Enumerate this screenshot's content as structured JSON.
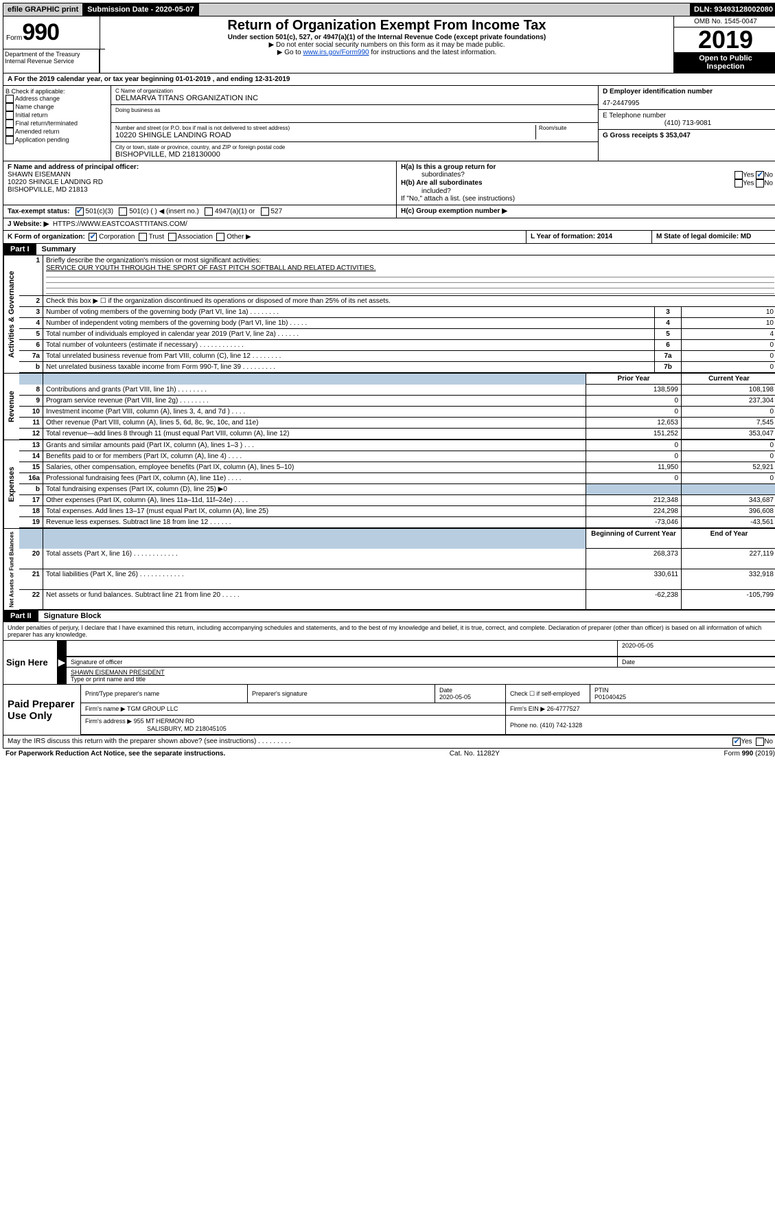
{
  "topbar": {
    "efile": "efile GRAPHIC print",
    "submission_label": "Submission Date - 2020-05-07",
    "dln": "DLN: 93493128002080"
  },
  "header": {
    "form_word": "Form",
    "form_num": "990",
    "title": "Return of Organization Exempt From Income Tax",
    "subtitle": "Under section 501(c), 527, or 4947(a)(1) of the Internal Revenue Code (except private foundations)",
    "note1": "▶ Do not enter social security numbers on this form as it may be made public.",
    "note2_pre": "▶ Go to ",
    "note2_link": "www.irs.gov/Form990",
    "note2_post": " for instructions and the latest information.",
    "dept": "Department of the Treasury\nInternal Revenue Service",
    "omb": "OMB No. 1545-0047",
    "year": "2019",
    "inspect1": "Open to Public",
    "inspect2": "Inspection"
  },
  "lineA": "A For the 2019 calendar year, or tax year beginning 01-01-2019    , and ending 12-31-2019",
  "colB": {
    "label": "B Check if applicable:",
    "items": [
      "Address change",
      "Name change",
      "Initial return",
      "Final return/terminated",
      "Amended return",
      "Application pending"
    ]
  },
  "colC": {
    "name_lbl": "C Name of organization",
    "name_val": "DELMARVA TITANS ORGANIZATION INC",
    "dba_lbl": "Doing business as",
    "addr_lbl": "Number and street (or P.O. box if mail is not delivered to street address)",
    "room_lbl": "Room/suite",
    "addr_val": "10220 SHINGLE LANDING ROAD",
    "city_lbl": "City or town, state or province, country, and ZIP or foreign postal code",
    "city_val": "BISHOPVILLE, MD  218130000"
  },
  "colDE": {
    "d_lbl": "D Employer identification number",
    "d_val": "47-2447995",
    "e_lbl": "E Telephone number",
    "e_val": "(410) 713-9081",
    "g_lbl": "G Gross receipts $ 353,047"
  },
  "colF": {
    "lbl": "F Name and address of principal officer:",
    "name": "SHAWN EISEMANN",
    "addr1": "10220 SHINGLE LANDING RD",
    "addr2": "BISHOPVILLE, MD  21813"
  },
  "colH": {
    "ha1": "H(a)  Is this a group return for",
    "ha2": "subordinates?",
    "hb1": "H(b)  Are all subordinates",
    "hb2": "included?",
    "hnote": "If \"No,\" attach a list. (see instructions)",
    "hc": "H(c)  Group exemption number ▶"
  },
  "lineI": {
    "lbl": "Tax-exempt status:",
    "opts": [
      "501(c)(3)",
      "501(c) (   ) ◀ (insert no.)",
      "4947(a)(1) or",
      "527"
    ]
  },
  "lineJ": {
    "lbl": "J    Website: ▶",
    "val": "HTTPS://WWW.EASTCOASTTITANS.COM/"
  },
  "lineK": {
    "lbl": "K Form of organization:",
    "opts": [
      "Corporation",
      "Trust",
      "Association",
      "Other ▶"
    ],
    "l_lbl": "L Year of formation: 2014",
    "m_lbl": "M State of legal domicile: MD"
  },
  "part1": {
    "label": "Part I",
    "title": "Summary"
  },
  "summary": {
    "q1_lbl": "Briefly describe the organization's mission or most significant activities:",
    "q1_val": "SERVICE OUR YOUTH THROUGH THE SPORT OF FAST PITCH SOFTBALL AND RELATED ACTIVITIES.",
    "q2": "Check this box ▶ ☐  if the organization discontinued its operations or disposed of more than 25% of its net assets.",
    "gov_rows": [
      {
        "n": "3",
        "d": "Number of voting members of the governing body (Part VI, line 1a)   .    .    .    .    .    .    .    .",
        "b": "3",
        "v": "10"
      },
      {
        "n": "4",
        "d": "Number of independent voting members of the governing body (Part VI, line 1b)   .    .    .    .    .",
        "b": "4",
        "v": "10"
      },
      {
        "n": "5",
        "d": "Total number of individuals employed in calendar year 2019 (Part V, line 2a)  .    .    .    .    .    .",
        "b": "5",
        "v": "4"
      },
      {
        "n": "6",
        "d": "Total number of volunteers (estimate if necessary)  .    .    .    .    .    .    .    .    .    .    .    .",
        "b": "6",
        "v": "0"
      },
      {
        "n": "7a",
        "d": "Total unrelated business revenue from Part VIII, column (C), line 12  .    .    .    .    .    .    .    .",
        "b": "7a",
        "v": "0"
      },
      {
        "n": "b",
        "d": "Net unrelated business taxable income from Form 990-T, line 39  .    .    .    .    .    .    .    .    .",
        "b": "7b",
        "v": "0"
      }
    ],
    "col_prior": "Prior Year",
    "col_current": "Current Year",
    "rev_rows": [
      {
        "n": "8",
        "d": "Contributions and grants (Part VIII, line 1h)  .    .    .    .    .    .    .    .",
        "p": "138,599",
        "c": "108,198"
      },
      {
        "n": "9",
        "d": "Program service revenue (Part VIII, line 2g)  .    .    .    .    .    .    .    .",
        "p": "0",
        "c": "237,304"
      },
      {
        "n": "10",
        "d": "Investment income (Part VIII, column (A), lines 3, 4, and 7d )  .    .    .    .",
        "p": "0",
        "c": "0"
      },
      {
        "n": "11",
        "d": "Other revenue (Part VIII, column (A), lines 5, 6d, 8c, 9c, 10c, and 11e)",
        "p": "12,653",
        "c": "7,545"
      },
      {
        "n": "12",
        "d": "Total revenue—add lines 8 through 11 (must equal Part VIII, column (A), line 12)",
        "p": "151,252",
        "c": "353,047"
      }
    ],
    "exp_rows": [
      {
        "n": "13",
        "d": "Grants and similar amounts paid (Part IX, column (A), lines 1–3 )  .    .    .",
        "p": "0",
        "c": "0"
      },
      {
        "n": "14",
        "d": "Benefits paid to or for members (Part IX, column (A), line 4)  .    .    .    .",
        "p": "0",
        "c": "0"
      },
      {
        "n": "15",
        "d": "Salaries, other compensation, employee benefits (Part IX, column (A), lines 5–10)",
        "p": "11,950",
        "c": "52,921"
      },
      {
        "n": "16a",
        "d": "Professional fundraising fees (Part IX, column (A), line 11e)  .    .    .    .",
        "p": "0",
        "c": "0"
      },
      {
        "n": "b",
        "d": "Total fundraising expenses (Part IX, column (D), line 25) ▶0",
        "p": "",
        "c": "",
        "shade": true
      },
      {
        "n": "17",
        "d": "Other expenses (Part IX, column (A), lines 11a–11d, 11f–24e)  .    .    .    .",
        "p": "212,348",
        "c": "343,687"
      },
      {
        "n": "18",
        "d": "Total expenses. Add lines 13–17 (must equal Part IX, column (A), line 25)",
        "p": "224,298",
        "c": "396,608"
      },
      {
        "n": "19",
        "d": "Revenue less expenses. Subtract line 18 from line 12  .    .    .    .    .    .",
        "p": "-73,046",
        "c": "-43,561"
      }
    ],
    "col_begin": "Beginning of Current Year",
    "col_end": "End of Year",
    "net_rows": [
      {
        "n": "20",
        "d": "Total assets (Part X, line 16)  .    .    .    .    .    .    .    .    .    .    .    .",
        "p": "268,373",
        "c": "227,119"
      },
      {
        "n": "21",
        "d": "Total liabilities (Part X, line 26)  .    .    .    .    .    .    .    .    .    .    .    .",
        "p": "330,611",
        "c": "332,918"
      },
      {
        "n": "22",
        "d": "Net assets or fund balances. Subtract line 21 from line 20  .    .    .    .    .",
        "p": "-62,238",
        "c": "-105,799"
      }
    ]
  },
  "side_labels": {
    "gov": "Activities & Governance",
    "rev": "Revenue",
    "exp": "Expenses",
    "net": "Net Assets or Fund Balances"
  },
  "part2": {
    "label": "Part II",
    "title": "Signature Block"
  },
  "perjury": "Under penalties of perjury, I declare that I have examined this return, including accompanying schedules and statements, and to the best of my knowledge and belief, it is true, correct, and complete. Declaration of preparer (other than officer) is based on all information of which preparer has any knowledge.",
  "sign": {
    "left": "Sign Here",
    "sig_officer": "Signature of officer",
    "date_val": "2020-05-05",
    "date_lbl": "Date",
    "name_val": "SHAWN EISEMANN  PRESIDENT",
    "name_lbl": "Type or print name and title"
  },
  "paid": {
    "left": "Paid Preparer Use Only",
    "h1": "Print/Type preparer's name",
    "h2": "Preparer's signature",
    "h3": "Date",
    "h3v": "2020-05-05",
    "h4": "Check ☐ if self-employed",
    "h5": "PTIN",
    "h5v": "P01040425",
    "firm_name_lbl": "Firm's name      ▶",
    "firm_name_val": "TGM GROUP LLC",
    "firm_ein": "Firm's EIN ▶ 26-4777527",
    "firm_addr_lbl": "Firm's address ▶",
    "firm_addr_val": "955 MT HERMON RD",
    "firm_addr_val2": "SALISBURY, MD  218045105",
    "phone": "Phone no. (410) 742-1328"
  },
  "discuss": "May the IRS discuss this return with the preparer shown above? (see instructions)    .    .    .    .    .    .    .    .    .",
  "footer": {
    "left": "For Paperwork Reduction Act Notice, see the separate instructions.",
    "mid": "Cat. No. 11282Y",
    "right": "Form 990 (2019)"
  }
}
